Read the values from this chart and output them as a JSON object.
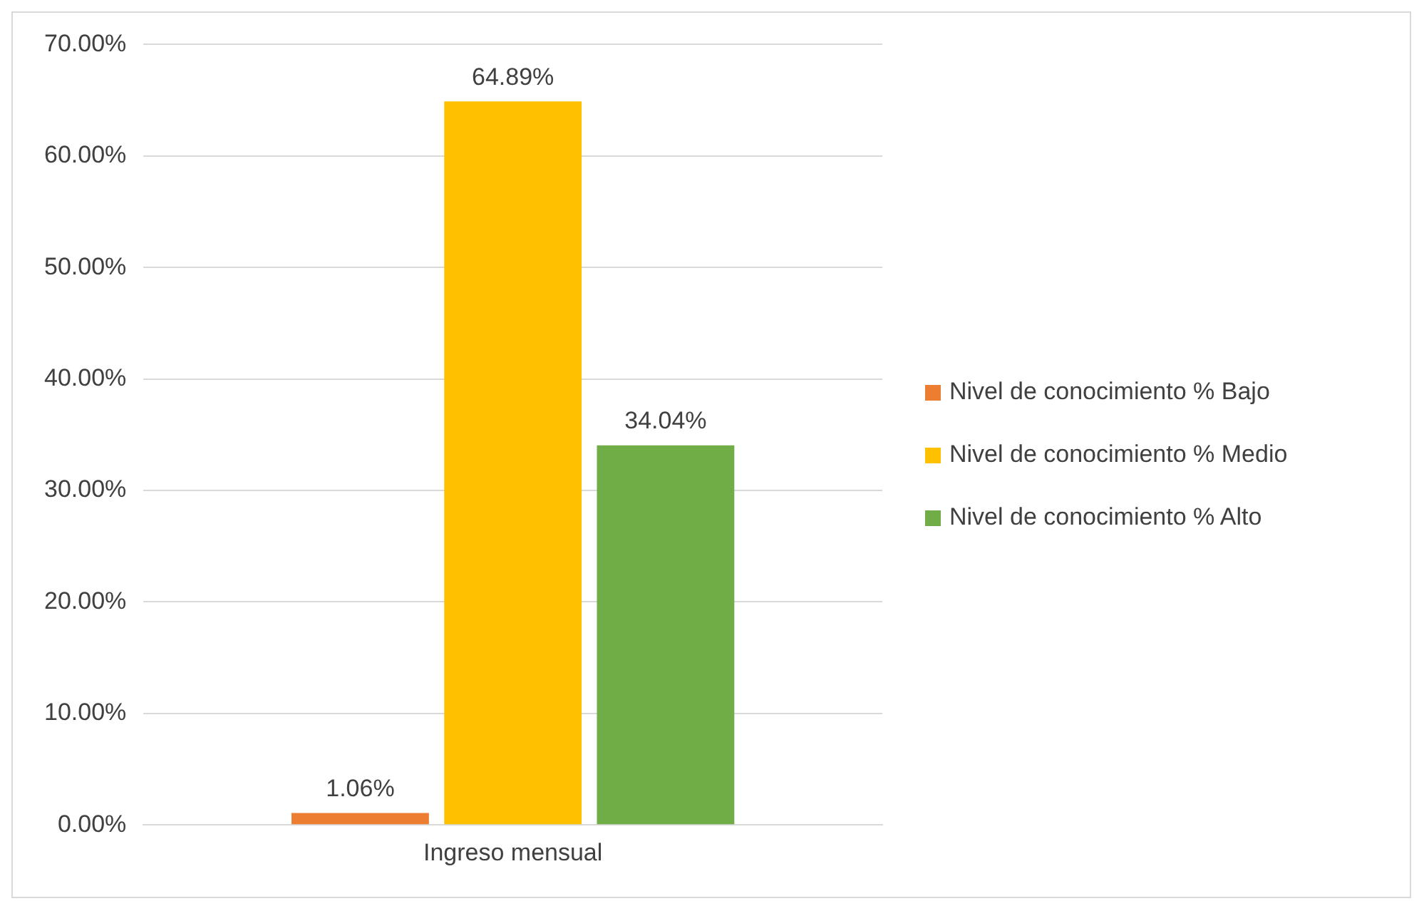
{
  "chart_data": {
    "type": "bar",
    "categories": [
      "Ingreso mensual"
    ],
    "series": [
      {
        "name": "Nivel de conocimiento % Bajo",
        "color": "#ed7d31",
        "values": [
          1.06
        ],
        "value_labels": [
          "1.06%"
        ]
      },
      {
        "name": "Nivel de conocimiento % Medio",
        "color": "#ffc000",
        "values": [
          64.89
        ],
        "value_labels": [
          "64.89%"
        ]
      },
      {
        "name": "Nivel de conocimiento % Alto",
        "color": "#70ad47",
        "values": [
          34.04
        ],
        "value_labels": [
          "34.04%"
        ]
      }
    ],
    "ylim": [
      0,
      70
    ],
    "yticks": [
      {
        "value": 0,
        "label": "0.00%"
      },
      {
        "value": 10,
        "label": "10.00%"
      },
      {
        "value": 20,
        "label": "20.00%"
      },
      {
        "value": 30,
        "label": "30.00%"
      },
      {
        "value": 40,
        "label": "40.00%"
      },
      {
        "value": 50,
        "label": "50.00%"
      },
      {
        "value": 60,
        "label": "60.00%"
      },
      {
        "value": 70,
        "label": "70.00%"
      }
    ],
    "grid": "y",
    "legend": "right"
  }
}
